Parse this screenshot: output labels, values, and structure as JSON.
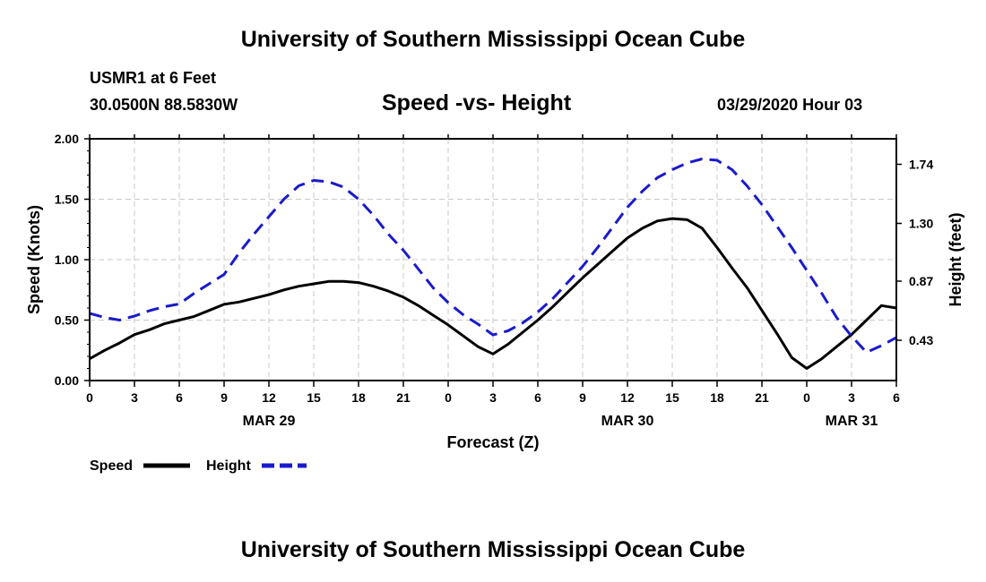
{
  "header": {
    "title": "University of Southern Mississippi Ocean Cube",
    "station": "USMR1 at 6 Feet",
    "coordinates": "30.0500N 88.5830W",
    "datetime": "03/29/2020 Hour 03"
  },
  "footer": {
    "title": "University of Southern Mississippi Ocean Cube"
  },
  "colors": {
    "speed": "#000000",
    "height": "#1a1acc",
    "grid": "#c8c8c8"
  },
  "chart_data": {
    "type": "line",
    "title": "Speed -vs- Height",
    "xlabel": "Forecast (Z)",
    "ylabel_left": "Speed (Knots)",
    "ylabel_right": "Height (feet)",
    "x_unit": "hours since 00Z MAR 29",
    "xlim": [
      0,
      54
    ],
    "x_ticks": [
      {
        "x": 0,
        "label": "0"
      },
      {
        "x": 3,
        "label": "3"
      },
      {
        "x": 6,
        "label": "6"
      },
      {
        "x": 9,
        "label": "9"
      },
      {
        "x": 12,
        "label": "12"
      },
      {
        "x": 15,
        "label": "15"
      },
      {
        "x": 18,
        "label": "18"
      },
      {
        "x": 21,
        "label": "21"
      },
      {
        "x": 24,
        "label": "0"
      },
      {
        "x": 27,
        "label": "3"
      },
      {
        "x": 30,
        "label": "6"
      },
      {
        "x": 33,
        "label": "9"
      },
      {
        "x": 36,
        "label": "12"
      },
      {
        "x": 39,
        "label": "15"
      },
      {
        "x": 42,
        "label": "18"
      },
      {
        "x": 45,
        "label": "21"
      },
      {
        "x": 48,
        "label": "0"
      },
      {
        "x": 51,
        "label": "3"
      },
      {
        "x": 54,
        "label": "6"
      }
    ],
    "day_labels": [
      {
        "x": 12,
        "label": "MAR 29"
      },
      {
        "x": 36,
        "label": "MAR 30"
      },
      {
        "x": 51,
        "label": "MAR 31"
      }
    ],
    "ylim_left": [
      0,
      2
    ],
    "y_ticks_left": [
      "0.00",
      "0.50",
      "1.00",
      "1.50",
      "2.00"
    ],
    "ylim_right": [
      0.13,
      1.93
    ],
    "y_ticks_right": [
      {
        "v": 0.43,
        "label": "0.43"
      },
      {
        "v": 0.87,
        "label": "0.87"
      },
      {
        "v": 1.3,
        "label": "1.30"
      },
      {
        "v": 1.74,
        "label": "1.74"
      }
    ],
    "legend": [
      {
        "name": "Speed",
        "style": "solid"
      },
      {
        "name": "Height",
        "style": "dashed"
      }
    ],
    "series": [
      {
        "name": "Speed",
        "axis": "left",
        "style": "solid",
        "x": [
          0,
          1,
          2,
          3,
          4,
          5,
          6,
          7,
          8,
          9,
          10,
          11,
          12,
          13,
          14,
          15,
          16,
          17,
          18,
          19,
          20,
          21,
          22,
          23,
          24,
          25,
          26,
          27,
          28,
          29,
          30,
          31,
          32,
          33,
          34,
          35,
          36,
          37,
          38,
          39,
          40,
          41,
          42,
          43,
          44,
          45,
          46,
          47,
          48,
          49,
          50,
          51,
          52,
          53,
          54
        ],
        "values": [
          0.18,
          0.25,
          0.31,
          0.38,
          0.42,
          0.47,
          0.5,
          0.53,
          0.58,
          0.63,
          0.65,
          0.68,
          0.71,
          0.75,
          0.78,
          0.8,
          0.82,
          0.82,
          0.81,
          0.78,
          0.74,
          0.69,
          0.62,
          0.54,
          0.46,
          0.37,
          0.28,
          0.22,
          0.3,
          0.4,
          0.5,
          0.61,
          0.73,
          0.85,
          0.96,
          1.07,
          1.18,
          1.26,
          1.32,
          1.34,
          1.33,
          1.26,
          1.1,
          0.93,
          0.77,
          0.58,
          0.39,
          0.19,
          0.1,
          0.18,
          0.28,
          0.38,
          0.5,
          0.62,
          0.6
        ]
      },
      {
        "name": "Height",
        "axis": "right",
        "style": "dashed",
        "x": [
          0,
          1,
          2,
          3,
          4,
          5,
          6,
          7,
          8,
          9,
          10,
          11,
          12,
          13,
          14,
          15,
          16,
          17,
          18,
          19,
          20,
          21,
          22,
          23,
          24,
          25,
          26,
          27,
          28,
          29,
          30,
          31,
          32,
          33,
          34,
          35,
          36,
          37,
          38,
          39,
          40,
          41,
          42,
          43,
          44,
          45,
          46,
          47,
          48,
          49,
          50,
          51,
          52,
          53,
          54
        ],
        "values": [
          0.63,
          0.6,
          0.58,
          0.61,
          0.65,
          0.68,
          0.7,
          0.78,
          0.85,
          0.92,
          1.08,
          1.22,
          1.35,
          1.48,
          1.58,
          1.62,
          1.61,
          1.57,
          1.48,
          1.36,
          1.22,
          1.1,
          0.96,
          0.82,
          0.71,
          0.62,
          0.55,
          0.47,
          0.5,
          0.56,
          0.64,
          0.74,
          0.86,
          0.98,
          1.12,
          1.27,
          1.42,
          1.54,
          1.64,
          1.7,
          1.75,
          1.78,
          1.77,
          1.7,
          1.58,
          1.44,
          1.28,
          1.12,
          0.95,
          0.78,
          0.6,
          0.46,
          0.34,
          0.39,
          0.45
        ]
      }
    ]
  }
}
